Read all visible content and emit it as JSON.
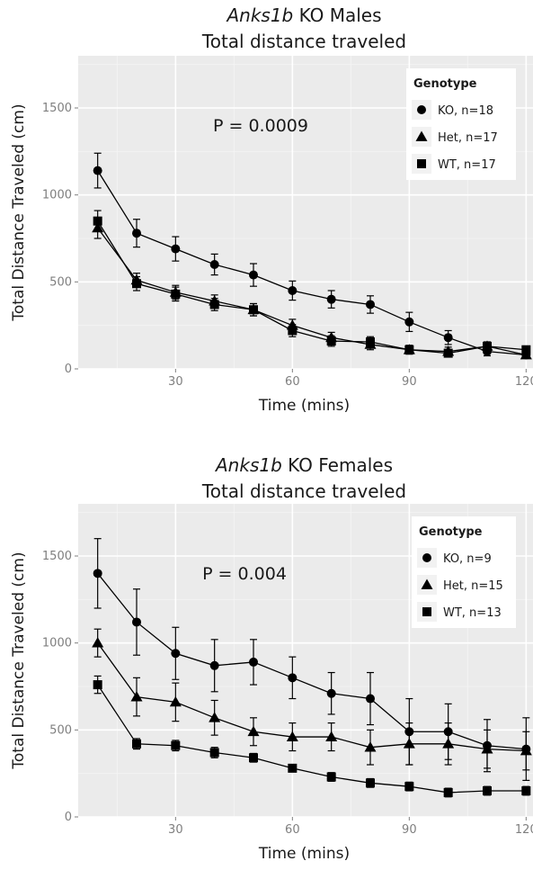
{
  "chart_data": [
    {
      "type": "line",
      "title_italic": "Anks1b",
      "title_line1_rest": " KO Males",
      "title_line2": "Total distance traveled",
      "xlabel": "Time (mins)",
      "ylabel": "Total Distance Traveled (cm)",
      "xlim": [
        5,
        122
      ],
      "ylim": [
        0,
        1800
      ],
      "xticks": [
        30,
        60,
        90,
        120
      ],
      "yticks": [
        0,
        500,
        1000,
        1500
      ],
      "grid": true,
      "legend": {
        "title": "Genotype",
        "position": "top-right"
      },
      "annotation": "P = 0.0009",
      "x": [
        10,
        20,
        30,
        40,
        50,
        60,
        70,
        80,
        90,
        100,
        110,
        120
      ],
      "series": [
        {
          "name": "KO, n=18",
          "marker": "circle",
          "values": [
            1140,
            780,
            690,
            600,
            540,
            450,
            400,
            370,
            270,
            180,
            100,
            80
          ],
          "errors": [
            100,
            80,
            70,
            60,
            65,
            55,
            50,
            50,
            55,
            40,
            25,
            20
          ]
        },
        {
          "name": "Het, n=17",
          "marker": "triangle",
          "values": [
            810,
            510,
            440,
            390,
            340,
            250,
            180,
            140,
            110,
            100,
            130,
            80
          ],
          "errors": [
            60,
            40,
            40,
            35,
            35,
            35,
            30,
            30,
            25,
            25,
            25,
            20
          ]
        },
        {
          "name": "WT, n=17",
          "marker": "square",
          "values": [
            850,
            490,
            430,
            370,
            340,
            220,
            160,
            155,
            110,
            90,
            130,
            110
          ],
          "errors": [
            60,
            40,
            40,
            35,
            35,
            35,
            30,
            30,
            25,
            20,
            25,
            20
          ]
        }
      ]
    },
    {
      "type": "line",
      "title_italic": "Anks1b",
      "title_line1_rest": " KO Females",
      "title_line2": "Total distance traveled",
      "xlabel": "Time (mins)",
      "ylabel": "Total Distance Traveled (cm)",
      "xlim": [
        5,
        122
      ],
      "ylim": [
        0,
        1800
      ],
      "xticks": [
        30,
        60,
        90,
        120
      ],
      "yticks": [
        0,
        500,
        1000,
        1500
      ],
      "grid": true,
      "legend": {
        "title": "Genotype",
        "position": "top-right"
      },
      "annotation": "P = 0.004",
      "x": [
        10,
        20,
        30,
        40,
        50,
        60,
        70,
        80,
        90,
        100,
        110,
        120
      ],
      "series": [
        {
          "name": "KO, n=9",
          "marker": "circle",
          "values": [
            1400,
            1120,
            940,
            870,
            890,
            800,
            710,
            680,
            490,
            490,
            410,
            390
          ],
          "errors": [
            200,
            190,
            150,
            150,
            130,
            120,
            120,
            150,
            190,
            160,
            150,
            180
          ]
        },
        {
          "name": "Het, n=15",
          "marker": "triangle",
          "values": [
            1000,
            690,
            660,
            570,
            490,
            460,
            460,
            400,
            420,
            420,
            390,
            380
          ],
          "errors": [
            80,
            110,
            110,
            100,
            80,
            80,
            80,
            100,
            120,
            120,
            110,
            110
          ]
        },
        {
          "name": "WT, n=13",
          "marker": "square",
          "values": [
            760,
            420,
            410,
            370,
            340,
            280,
            230,
            195,
            175,
            140,
            150,
            150
          ],
          "errors": [
            50,
            30,
            30,
            30,
            25,
            20,
            25,
            25,
            25,
            25,
            25,
            25
          ]
        }
      ]
    }
  ]
}
